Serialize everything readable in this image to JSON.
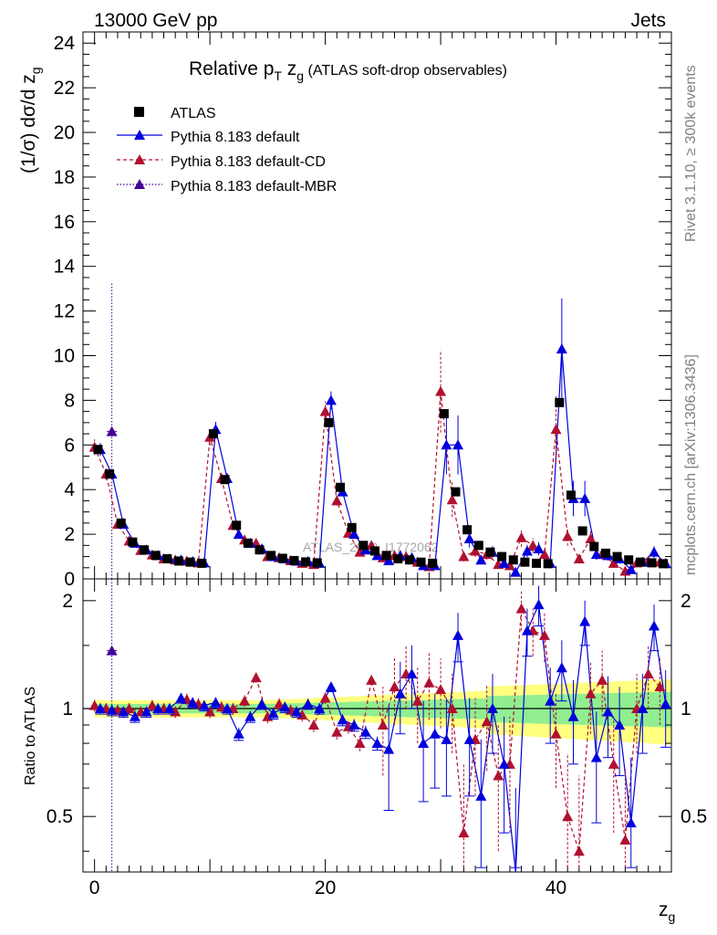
{
  "header": {
    "energy": "13000 GeV pp",
    "category": "Jets",
    "side_rivet": "Rivet 3.1.10, ≥ 300k events",
    "side_mcplots": "mcplots.cern.ch [arXiv:1306.3436]",
    "watermark": "ATLAS_2019_I1772062"
  },
  "colors": {
    "atlas": "#000000",
    "default": "#0000dd",
    "cd": "#b01030",
    "mbr": "#440099",
    "band_inner": "#90ee90",
    "band_outer": "#ffff80"
  },
  "chart_data": {
    "type": "scatter",
    "title": "Relative pT zg (ATLAS soft-drop observables)",
    "title_parts": {
      "pre": "Relative p",
      "sub1": "T",
      "mid": " z",
      "sub2": "g",
      "post": " (ATLAS soft-drop observables)"
    },
    "ylabel_parts": {
      "main": "(1/σ) dσ/d z",
      "sub": "g"
    },
    "xlabel_parts": {
      "main": "z",
      "sub": "g"
    },
    "ratio_ylabel": "Ratio to ATLAS",
    "xlim": [
      -1,
      50
    ],
    "ylim_main": [
      0,
      24.5
    ],
    "ylim_ratio": [
      0.35,
      2.3
    ],
    "x_ticks": [
      0,
      20,
      40
    ],
    "x_tick_labels": [
      "0",
      "20",
      "40"
    ],
    "y_ticks_main": [
      0,
      2,
      4,
      6,
      8,
      10,
      12,
      14,
      16,
      18,
      20,
      22,
      24
    ],
    "y_tick_labels_main": [
      "0",
      "2",
      "4",
      "6",
      "8",
      "10",
      "12",
      "14",
      "16",
      "18",
      "20",
      "22",
      "24"
    ],
    "y_ticks_ratio": [
      0.5,
      1,
      2
    ],
    "y_tick_labels_ratio": [
      "0.5",
      "1",
      "2"
    ],
    "legend_position": "top-left",
    "legend": [
      "ATLAS",
      "Pythia 8.183 default",
      "Pythia 8.183 default-CD",
      "Pythia 8.183 default-MBR"
    ],
    "x": [
      0.5,
      1.5,
      2.5,
      3.5,
      4.5,
      5.5,
      6.5,
      7.5,
      8.5,
      9.5,
      10.5,
      11.5,
      12.5,
      13.5,
      14.5,
      15.5,
      16.5,
      17.5,
      18.5,
      19.5,
      20.5,
      21.5,
      22.5,
      23.5,
      24.5,
      25.5,
      26.5,
      27.5,
      28.5,
      29.5,
      30.5,
      31.5,
      32.5,
      33.5,
      34.5,
      35.5,
      36.5,
      37.5,
      38.5,
      39.5,
      40.5,
      41.5,
      42.5,
      43.5,
      44.5,
      45.5,
      46.5,
      47.5,
      48.5,
      49.5
    ],
    "series": [
      {
        "name": "ATLAS",
        "values": [
          5.8,
          4.7,
          2.5,
          1.65,
          1.3,
          1.05,
          0.9,
          0.8,
          0.75,
          0.7,
          6.5,
          4.45,
          2.4,
          1.6,
          1.3,
          1.05,
          0.92,
          0.82,
          0.76,
          0.72,
          7.0,
          4.1,
          2.3,
          1.5,
          1.25,
          1.05,
          0.9,
          0.85,
          0.75,
          0.7,
          7.4,
          3.9,
          2.2,
          1.5,
          1.2,
          1.0,
          0.85,
          0.75,
          0.7,
          0.68,
          7.9,
          3.75,
          2.15,
          1.45,
          1.15,
          1.0,
          0.85,
          0.75,
          0.72,
          0.68
        ]
      },
      {
        "name": "Pythia 8.183 default",
        "values": [
          5.8,
          4.7,
          2.45,
          1.6,
          1.3,
          1.05,
          0.9,
          0.85,
          0.78,
          0.72,
          6.7,
          4.5,
          2.0,
          1.6,
          1.35,
          1.0,
          0.9,
          0.8,
          0.78,
          0.7,
          8.0,
          3.9,
          2.0,
          1.3,
          1.05,
          0.82,
          1.05,
          0.95,
          0.6,
          0.6,
          6.0,
          6.0,
          1.8,
          0.85,
          1.2,
          0.7,
          0.3,
          1.25,
          1.35,
          0.7,
          10.3,
          3.6,
          3.6,
          1.1,
          1.05,
          0.9,
          0.42,
          0.75,
          1.2,
          0.7
        ]
      },
      {
        "name": "Pythia 8.183 default-CD",
        "values": [
          5.9,
          4.7,
          2.45,
          1.7,
          1.28,
          1.08,
          0.9,
          0.85,
          0.8,
          0.72,
          6.35,
          4.5,
          2.4,
          1.75,
          1.6,
          1.0,
          0.95,
          0.82,
          0.7,
          0.65,
          7.5,
          3.5,
          2.05,
          1.2,
          1.5,
          0.95,
          1.05,
          1.0,
          0.75,
          0.55,
          8.4,
          3.55,
          1.0,
          1.25,
          1.1,
          0.65,
          0.6,
          1.85,
          1.5,
          1.1,
          6.7,
          1.9,
          0.9,
          1.8,
          1.1,
          0.7,
          0.35,
          0.72,
          0.8,
          0.75
        ]
      },
      {
        "name": "Pythia 8.183 default-MBR",
        "points": [
          {
            "x": 1.5,
            "y": 6.6,
            "err": 6.7
          }
        ]
      }
    ],
    "ratio_default": [
      1.0,
      0.99,
      0.98,
      0.95,
      0.98,
      1.0,
      1.0,
      1.07,
      1.04,
      1.02,
      1.04,
      1.0,
      0.85,
      0.95,
      1.03,
      0.97,
      1.01,
      0.98,
      1.03,
      1.0,
      1.15,
      0.93,
      0.9,
      0.86,
      0.8,
      0.77,
      1.1,
      1.25,
      0.8,
      0.85,
      0.82,
      1.6,
      0.82,
      0.57,
      1.0,
      0.7,
      0.35,
      1.65,
      1.95,
      1.05,
      1.3,
      0.95,
      1.75,
      0.73,
      0.98,
      0.9,
      0.48,
      1.0,
      1.7,
      1.03
    ],
    "ratio_cd": [
      1.02,
      1.0,
      0.99,
      1.0,
      0.98,
      1.02,
      1.0,
      0.98,
      1.06,
      1.03,
      0.98,
      1.01,
      1.0,
      1.05,
      1.22,
      0.95,
      1.03,
      0.99,
      0.96,
      0.9,
      1.07,
      0.86,
      0.89,
      0.8,
      1.2,
      0.9,
      1.15,
      1.25,
      1.05,
      1.18,
      1.13,
      1.0,
      0.45,
      0.82,
      0.92,
      0.65,
      0.7,
      1.9,
      1.65,
      1.6,
      0.85,
      0.5,
      0.4,
      1.1,
      1.2,
      0.7,
      0.43,
      1.0,
      1.25,
      1.15
    ],
    "mbr_ratio_point": {
      "x": 1.5,
      "y": 1.45
    }
  }
}
